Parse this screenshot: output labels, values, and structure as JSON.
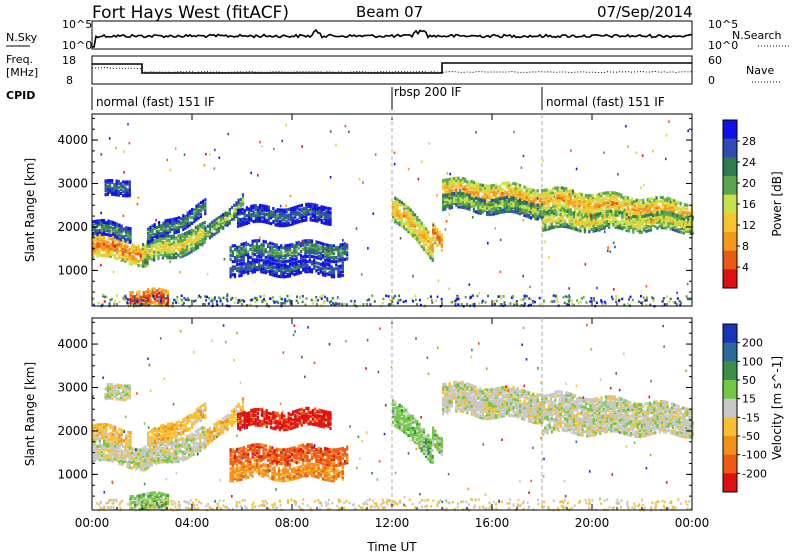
{
  "header": {
    "title": "Fort Hays West (fitACF)",
    "beam": "Beam 07",
    "date": "07/Sep/2014"
  },
  "panels": {
    "nsky": {
      "label": "N.Sky",
      "right_label": "N.Search",
      "tick_top": "10^5",
      "tick_bottom": "10^0",
      "tick_top_right": "10^5",
      "tick_bottom_right": "10^0"
    },
    "freq": {
      "label_line1": "Freq.",
      "label_line2": "[MHz]",
      "ticks_left": [
        "18",
        "8"
      ],
      "ticks_right": [
        "60",
        "0"
      ],
      "right_label": "Nave"
    },
    "cpid": {
      "label": "CPID",
      "segments": [
        "normal (fast) 151 IF",
        "rbsp 200 IF",
        "normal (fast) 151 IF"
      ]
    }
  },
  "chart_data": [
    {
      "type": "heatmap",
      "name": "power",
      "ylabel": "Slant Range [km]",
      "yticks": [
        1000,
        2000,
        3000,
        4000
      ],
      "ylim": [
        180,
        4600
      ],
      "xlim_hours": [
        0,
        24
      ],
      "colorbar": {
        "label": "Power [dB]",
        "ticks": [
          4,
          8,
          12,
          16,
          20,
          24,
          28
        ]
      },
      "colors": [
        "#1010e8",
        "#2d4bb0",
        "#2f7a4f",
        "#5aa64f",
        "#c8e04a",
        "#f6c52d",
        "#f39a1c",
        "#ea5a14",
        "#dd1010"
      ]
    },
    {
      "type": "heatmap",
      "name": "velocity",
      "ylabel": "Slant Range [km]",
      "yticks": [
        1000,
        2000,
        3000,
        4000
      ],
      "ylim": [
        180,
        4600
      ],
      "xlim_hours": [
        0,
        24
      ],
      "xlabel": "Time UT",
      "xticks": [
        "00:00",
        "04:00",
        "08:00",
        "12:00",
        "16:00",
        "20:00",
        "00:00"
      ],
      "colorbar": {
        "label": "Velocity [m s^-1]",
        "ticks": [
          200,
          100,
          50,
          15,
          -15,
          -50,
          -100,
          -200
        ]
      },
      "colors": [
        "#1a34b8",
        "#2d6a9c",
        "#3a8f4a",
        "#72c842",
        "#c8c8c8",
        "#f6c030",
        "#f4901a",
        "#ee5a14",
        "#e01010"
      ]
    }
  ]
}
